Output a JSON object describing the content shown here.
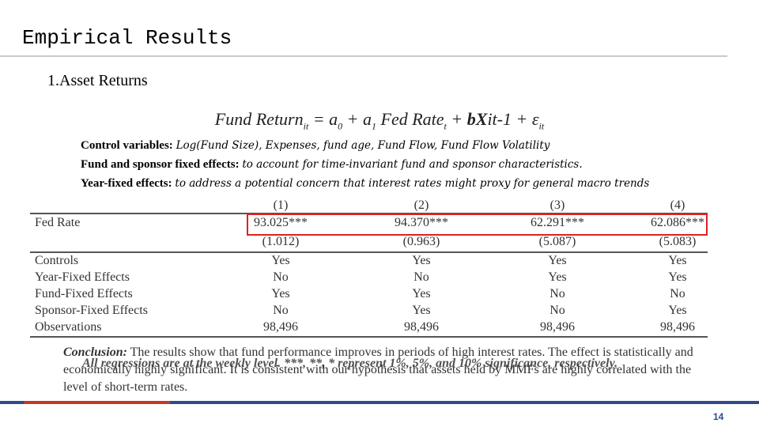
{
  "header": {
    "title": "Empirical Results",
    "section": "1.Asset Returns"
  },
  "equation": [
    "Fund Return",
    "it",
    " = a",
    "0",
    " + a",
    "1",
    " Fed Rate",
    "t",
    " + ",
    "bX",
    "it-1",
    " + ε",
    "it"
  ],
  "bullets": [
    {
      "label": "Control variables:",
      "text": "Log(Fund Size), Expenses, fund age, Fund Flow, Fund Flow Volatility"
    },
    {
      "label": "Fund and sponsor fixed effects:",
      "text": "to account for time-invariant fund and sponsor characteristics."
    },
    {
      "label": "Year-fixed effects:",
      "text": "to address a potential concern that interest rates might proxy for general macro trends"
    }
  ],
  "table": {
    "columns": [
      "(1)",
      "(2)",
      "(3)",
      "(4)"
    ],
    "main_rows": [
      [
        "Fed Rate",
        "93.025***",
        "94.370***",
        "62.291***",
        "62.086***"
      ],
      [
        "",
        "(1.012)",
        "(0.963)",
        "(5.087)",
        "(5.083)"
      ]
    ],
    "rows": [
      [
        "Controls",
        "Yes",
        "Yes",
        "Yes",
        "Yes"
      ],
      [
        "Year-Fixed Effects",
        "No",
        "No",
        "Yes",
        "Yes"
      ],
      [
        "Fund-Fixed Effects",
        "Yes",
        "Yes",
        "No",
        "No"
      ],
      [
        "Sponsor-Fixed Effects",
        "No",
        "Yes",
        "No",
        "Yes"
      ],
      [
        "Observations",
        "98,496",
        "98,496",
        "98,496",
        "98,496"
      ]
    ]
  },
  "note": "All regressions are at the weekly level. ***, **, * represent 1%, 5%, and 10% significance, respectively.",
  "conclusion": {
    "label": "Conclusion:",
    "text": "The results show that fund performance improves in periods of high interest rates. The effect is statistically and economically highly significant. It is consistent with our hypothesis that assets held by MMFs are highly correlated with the level of short-term rates."
  },
  "page_number": "14"
}
